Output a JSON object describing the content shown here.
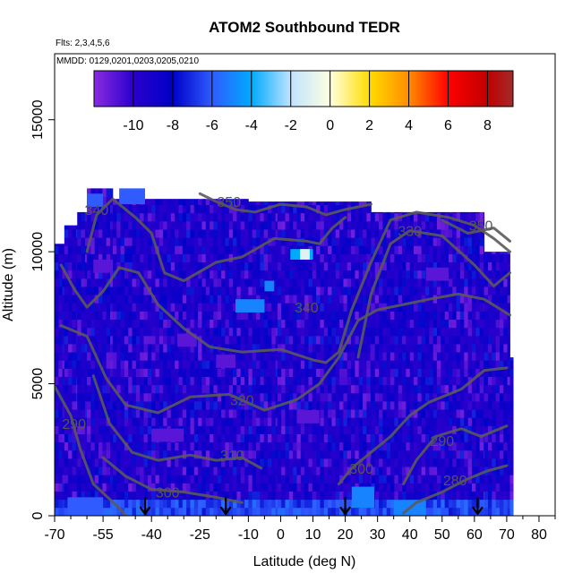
{
  "chart_data": {
    "type": "heatmap",
    "title": "ATOM2 Southbound TEDR",
    "flights_note": "Flts: 2,3,4,5,6",
    "dates_note": "MMDD: 0129,0201,0203,0205,0210",
    "xlabel": "Latitude (deg N)",
    "ylabel": "Altitude (m)",
    "xlim": [
      -70,
      85
    ],
    "ylim": [
      0,
      17500
    ],
    "x_ticks": [
      -70,
      -55,
      -40,
      -25,
      -10,
      0,
      10,
      20,
      30,
      40,
      50,
      60,
      70,
      80
    ],
    "x_minor_ticks": [
      -65,
      -60,
      -50,
      -45,
      -35,
      -30,
      -20,
      -15,
      -5,
      5,
      15,
      25,
      35,
      45,
      55,
      65,
      75,
      85
    ],
    "y_ticks": [
      0,
      5000,
      10000,
      15000
    ],
    "grid": false,
    "colorbar": {
      "position": "top",
      "range": [
        -12,
        9.3
      ],
      "ticks": [
        -10,
        -8,
        -6,
        -4,
        -2,
        0,
        2,
        4,
        6,
        8
      ],
      "stops": [
        {
          "v": -12,
          "c": "#8a2be2"
        },
        {
          "v": -10,
          "c": "#2a00cc"
        },
        {
          "v": -8,
          "c": "#0000c8"
        },
        {
          "v": -6,
          "c": "#2f5bff"
        },
        {
          "v": -4,
          "c": "#00aaff"
        },
        {
          "v": -2,
          "c": "#bfe3ff"
        },
        {
          "v": 0,
          "c": "#ffffe0"
        },
        {
          "v": 2,
          "c": "#ffdd00"
        },
        {
          "v": 4,
          "c": "#ff8c00"
        },
        {
          "v": 6,
          "c": "#ff0000"
        },
        {
          "v": 8,
          "c": "#c00000"
        },
        {
          "v": 9.3,
          "c": "#a52a2a"
        }
      ]
    },
    "data_columns": [
      {
        "lat": [
          -70,
          -67
        ],
        "alt_top": 10300
      },
      {
        "lat": [
          -67,
          -63
        ],
        "alt_top": 11000
      },
      {
        "lat": [
          -63,
          -60
        ],
        "alt_top": 11500
      },
      {
        "lat": [
          -60,
          -52
        ],
        "alt_top": 12400
      },
      {
        "lat": [
          -52,
          -10
        ],
        "alt_top": 12000
      },
      {
        "lat": [
          -10,
          -1
        ],
        "alt_top": 11900
      },
      {
        "lat": [
          -1,
          28
        ],
        "alt_top": 11900
      },
      {
        "lat": [
          28,
          63
        ],
        "alt_top": 11500
      },
      {
        "lat": [
          63,
          71
        ],
        "alt_top": 10000
      },
      {
        "lat": [
          71,
          72
        ],
        "alt_top": 6000
      }
    ],
    "highlight_cells": [
      {
        "lat": [
          -14,
          -5
        ],
        "alt": [
          7700,
          8200
        ],
        "value": -5
      },
      {
        "lat": [
          -5,
          -2
        ],
        "alt": [
          8500,
          8900
        ],
        "value": -5
      },
      {
        "lat": [
          3,
          10
        ],
        "alt": [
          9700,
          10100
        ],
        "value": -4
      },
      {
        "lat": [
          6,
          9
        ],
        "alt": [
          9700,
          10100
        ],
        "value": -1
      },
      {
        "lat": [
          -60,
          -55
        ],
        "alt": [
          11700,
          12200
        ],
        "value": -6
      },
      {
        "lat": [
          -50,
          -42
        ],
        "alt": [
          11800,
          12400
        ],
        "value": -6
      },
      {
        "lat": [
          22,
          29
        ],
        "alt": [
          300,
          1100
        ],
        "value": -5
      },
      {
        "lat": [
          35,
          45
        ],
        "alt": [
          0,
          600
        ],
        "value": -5
      },
      {
        "lat": [
          -66,
          -55
        ],
        "alt": [
          0,
          700
        ],
        "value": -6
      },
      {
        "lat": [
          -40,
          -30
        ],
        "alt": [
          2800,
          3300
        ],
        "value": -11
      },
      {
        "lat": [
          -20,
          -14
        ],
        "alt": [
          5600,
          6100
        ],
        "value": -11
      },
      {
        "lat": [
          5,
          12
        ],
        "alt": [
          3500,
          4000
        ],
        "value": -11
      },
      {
        "lat": [
          -32,
          -26
        ],
        "alt": [
          6400,
          6900
        ],
        "value": -11
      },
      {
        "lat": [
          45,
          52
        ],
        "alt": [
          8900,
          9400
        ],
        "value": -11
      },
      {
        "lat": [
          -58,
          -52
        ],
        "alt": [
          9200,
          9700
        ],
        "value": -11
      }
    ],
    "contours": [
      {
        "label": "280",
        "label_at": [
          54,
          1350
        ],
        "points": [
          [
            38,
            100
          ],
          [
            42,
            500
          ],
          [
            50,
            900
          ],
          [
            58,
            1400
          ],
          [
            64,
            1700
          ],
          [
            70,
            1900
          ]
        ]
      },
      {
        "label": "290",
        "label_at": [
          -64,
          3500
        ],
        "points": [
          [
            -70,
            4900
          ],
          [
            -65,
            3800
          ],
          [
            -62,
            2500
          ],
          [
            -58,
            1200
          ],
          [
            -50,
            300
          ],
          [
            -48,
            0
          ]
        ]
      },
      {
        "label": "290",
        "label_at": [
          50,
          2850
        ],
        "points": [
          [
            38,
            1200
          ],
          [
            42,
            2100
          ],
          [
            48,
            3000
          ],
          [
            56,
            3300
          ],
          [
            62,
            3000
          ],
          [
            70,
            3400
          ]
        ]
      },
      {
        "label": "300",
        "label_at": [
          -35,
          900
        ],
        "points": [
          [
            -55,
            2200
          ],
          [
            -48,
            1500
          ],
          [
            -40,
            1000
          ],
          [
            -30,
            900
          ],
          [
            -20,
            700
          ],
          [
            -12,
            500
          ]
        ]
      },
      {
        "label": "300",
        "label_at": [
          25,
          1800
        ],
        "points": [
          [
            18,
            1200
          ],
          [
            22,
            1800
          ],
          [
            28,
            2400
          ],
          [
            34,
            3000
          ],
          [
            40,
            3800
          ],
          [
            46,
            4300
          ],
          [
            56,
            4800
          ],
          [
            63,
            5500
          ],
          [
            70,
            5600
          ]
        ]
      },
      {
        "label": "310",
        "label_at": [
          -15,
          2300
        ],
        "points": [
          [
            -58,
            5300
          ],
          [
            -53,
            3500
          ],
          [
            -46,
            2400
          ],
          [
            -38,
            2100
          ],
          [
            -28,
            2300
          ],
          [
            -20,
            2100
          ],
          [
            -12,
            2200
          ],
          [
            -6,
            1800
          ]
        ]
      },
      {
        "label": "320",
        "label_at": [
          -12,
          4400
        ],
        "points": [
          [
            -68,
            7200
          ],
          [
            -60,
            6800
          ],
          [
            -54,
            5200
          ],
          [
            -48,
            4200
          ],
          [
            -38,
            3900
          ],
          [
            -28,
            4500
          ],
          [
            -16,
            4600
          ],
          [
            -5,
            4000
          ],
          [
            5,
            4400
          ],
          [
            12,
            5000
          ],
          [
            18,
            6000
          ],
          [
            24,
            7400
          ],
          [
            30,
            7800
          ],
          [
            38,
            8000
          ],
          [
            46,
            8200
          ],
          [
            55,
            8400
          ],
          [
            63,
            8200
          ],
          [
            71,
            7600
          ]
        ]
      },
      {
        "label": "330",
        "label_at": [
          40,
          10800
        ],
        "points": [
          [
            24,
            6000
          ],
          [
            28,
            8400
          ],
          [
            34,
            10300
          ],
          [
            40,
            10800
          ],
          [
            50,
            10600
          ],
          [
            60,
            9500
          ],
          [
            66,
            8700
          ],
          [
            71,
            9200
          ]
        ]
      },
      {
        "label": "340",
        "label_at": [
          8,
          7900
        ],
        "points": [
          [
            -68,
            9500
          ],
          [
            -64,
            8600
          ],
          [
            -60,
            7900
          ],
          [
            -55,
            8500
          ],
          [
            -50,
            9400
          ],
          [
            -44,
            9200
          ],
          [
            -38,
            8000
          ],
          [
            -30,
            7100
          ],
          [
            -22,
            6400
          ],
          [
            -12,
            6200
          ],
          [
            0,
            6300
          ],
          [
            10,
            5900
          ],
          [
            14,
            5800
          ],
          [
            18,
            6200
          ],
          [
            22,
            7800
          ],
          [
            28,
            9600
          ],
          [
            34,
            11200
          ],
          [
            42,
            11500
          ],
          [
            52,
            11300
          ],
          [
            60,
            11000
          ],
          [
            66,
            10500
          ],
          [
            71,
            10000
          ]
        ]
      },
      {
        "label": "340",
        "label_at": [
          -57,
          11600
        ],
        "points": [
          [
            -60,
            10000
          ],
          [
            -57,
            11400
          ],
          [
            -52,
            12000
          ],
          [
            -45,
            11300
          ],
          [
            -40,
            10700
          ],
          [
            -36,
            9200
          ],
          [
            -30,
            8900
          ],
          [
            -20,
            9600
          ],
          [
            -12,
            9800
          ],
          [
            -2,
            10500
          ],
          [
            8,
            10400
          ],
          [
            12,
            10300
          ],
          [
            16,
            10900
          ],
          [
            20,
            11300
          ]
        ]
      },
      {
        "label": "350",
        "label_at": [
          -16,
          11900
        ],
        "points": [
          [
            -25,
            12200
          ],
          [
            -20,
            11900
          ],
          [
            -14,
            11600
          ],
          [
            -8,
            11500
          ],
          [
            0,
            11800
          ],
          [
            8,
            11700
          ],
          [
            14,
            11400
          ],
          [
            20,
            11600
          ],
          [
            28,
            11800
          ]
        ]
      },
      {
        "label": "350",
        "label_at": [
          62,
          11000
        ],
        "points": [
          [
            50,
            11200
          ],
          [
            58,
            10700
          ],
          [
            66,
            10900
          ],
          [
            71,
            10400
          ]
        ]
      }
    ],
    "markers": {
      "type": "down-arrow",
      "lats": [
        -42,
        -17,
        20,
        61
      ]
    }
  }
}
